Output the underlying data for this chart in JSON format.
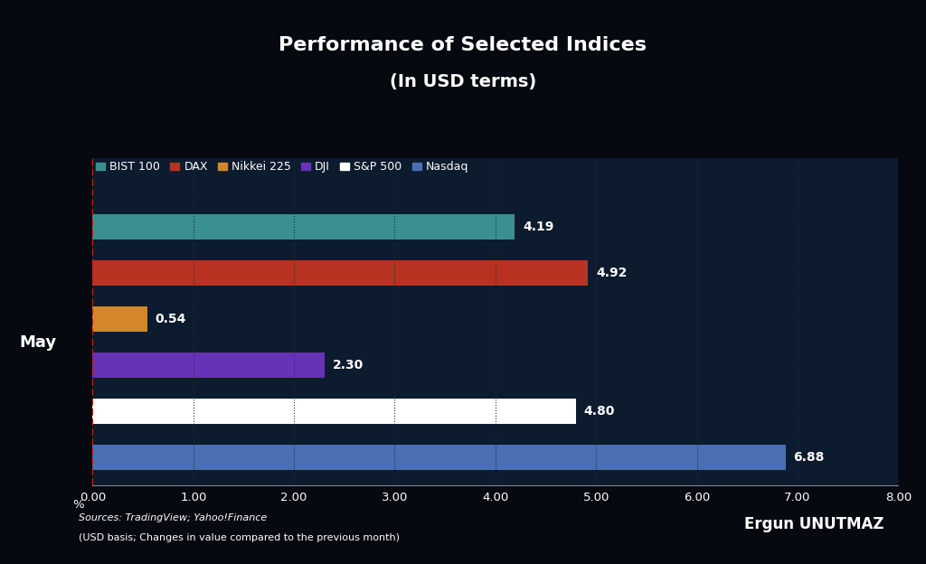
{
  "title_line1": "Performance of Selected Indices",
  "title_line2": "(In USD terms)",
  "background_color": "#060910",
  "plot_bg_color": "#0d1b2e",
  "categories": [
    "BIST 100",
    "DAX",
    "Nikkei 225",
    "DJI",
    "S&P 500",
    "Nasdaq"
  ],
  "values": [
    4.19,
    4.92,
    0.54,
    2.3,
    4.8,
    6.88
  ],
  "bar_colors": [
    "#3a9090",
    "#b83222",
    "#d4872a",
    "#6632b8",
    "#ffffff",
    "#4a6fb5"
  ],
  "ylabel": "May",
  "xlabel": "%",
  "xlim": [
    0,
    8.0
  ],
  "xticks": [
    0.0,
    1.0,
    2.0,
    3.0,
    4.0,
    5.0,
    6.0,
    7.0,
    8.0
  ],
  "text_color": "#ffffff",
  "grid_color": "#1e2d45",
  "source_italic": "Sources: TradingView; Yahoo!Finance",
  "source_normal": "(USD basis; Changes in value compared to the previous month)",
  "author_text": "Ergun UNUTMAZ",
  "legend_colors": [
    "#3a9090",
    "#b83222",
    "#d4872a",
    "#6632b8",
    "#ffffff",
    "#4a6fb5"
  ],
  "legend_labels": [
    "BIST 100",
    "DAX",
    "Nikkei 225",
    "DJI",
    "S&P 500",
    "Nasdaq"
  ],
  "value_labels": [
    "4.19",
    "4.92",
    "0.54",
    "2.30",
    "4.80",
    "6.88"
  ],
  "bar_height": 0.55
}
